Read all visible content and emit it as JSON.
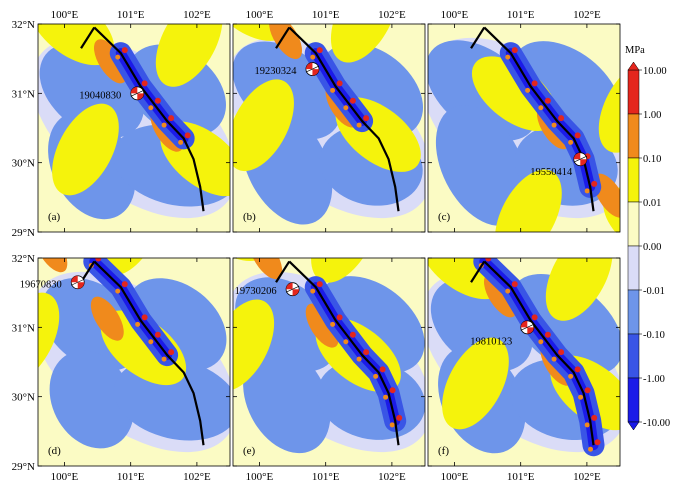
{
  "figure": {
    "longitude_ticks": [
      "100°E",
      "101°E",
      "102°E"
    ],
    "latitude_ticks": [
      "32°N",
      "31°N",
      "30°N",
      "29°N"
    ],
    "panels": [
      {
        "label": "(a)",
        "event": "19040830",
        "event_lon": 101.1,
        "event_lat": 31.0
      },
      {
        "label": "(b)",
        "event": "19230324",
        "event_lon": 100.8,
        "event_lat": 31.35
      },
      {
        "label": "(c)",
        "event": "19550414",
        "event_lon": 101.9,
        "event_lat": 30.05
      },
      {
        "label": "(d)",
        "event": "19670830",
        "event_lon": 100.2,
        "event_lat": 31.65
      },
      {
        "label": "(e)",
        "event": "19730206",
        "event_lon": 100.5,
        "event_lat": 31.55
      },
      {
        "label": "(f)",
        "event": "19810123",
        "event_lon": 101.1,
        "event_lat": 31.0
      }
    ],
    "fault_trace": [
      [
        100.45,
        31.95
      ],
      [
        100.85,
        31.58
      ],
      [
        101.15,
        31.1
      ],
      [
        101.35,
        30.85
      ],
      [
        101.55,
        30.6
      ],
      [
        101.8,
        30.35
      ],
      [
        101.95,
        30.05
      ],
      [
        102.05,
        29.65
      ],
      [
        102.1,
        29.3
      ]
    ],
    "fault_branch": [
      [
        100.25,
        31.65
      ],
      [
        100.45,
        31.95
      ]
    ],
    "colorbar": {
      "unit": "MPa",
      "labels": [
        "10.00",
        "1.00",
        "0.10",
        "0.01",
        "0.00",
        "-0.01",
        "-0.10",
        "-1.00",
        "-10.00"
      ],
      "colors": [
        "#e4261d",
        "#f08a1c",
        "#f5f30c",
        "#fbfbc4",
        "#dadcf7",
        "#6e95ea",
        "#3955e6",
        "#1b1be8"
      ]
    },
    "colors": {
      "background": "#fbfbc4",
      "neg_light": "#dadcf7",
      "neg_mid": "#6e95ea",
      "neg_strong": "#3955e6",
      "neg_max": "#1b1be8",
      "pos_low": "#f5f30c",
      "pos_mid": "#f08a1c",
      "pos_high": "#e4261d"
    }
  }
}
